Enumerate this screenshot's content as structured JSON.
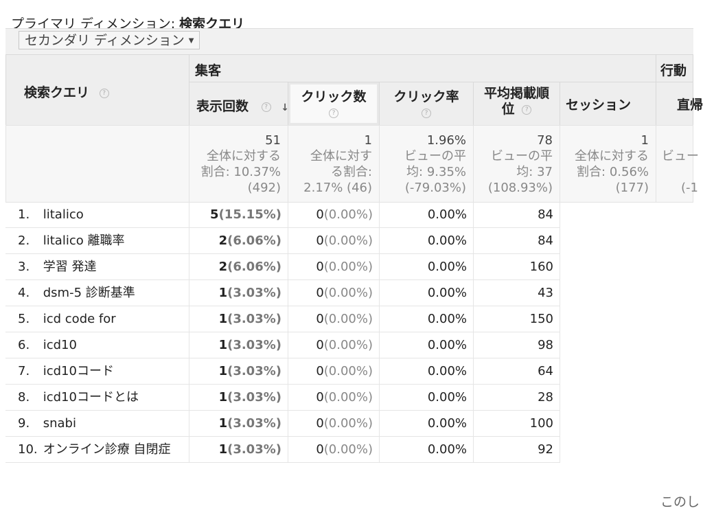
{
  "primary_dimension": {
    "label": "プライマリ ディメンション:",
    "value": "検索クエリ"
  },
  "secondary_dimension_button": "セカンダリ ディメンション",
  "headers": {
    "query": "検索クエリ",
    "group_acquisition": "集客",
    "group_behavior": "行動",
    "impressions": "表示回数",
    "clicks": "クリック数",
    "ctr": "クリック率",
    "avg_position": "平均掲載順位",
    "sessions": "セッション",
    "bounce_partial": "直帰"
  },
  "totals": {
    "impressions": {
      "value": "51",
      "line1": "全体に対する",
      "line2": "割合: 10.37%",
      "line3": "(492)"
    },
    "clicks": {
      "value": "1",
      "line1": "全体に対す",
      "line2": "る割合:",
      "line3": "2.17% (46)"
    },
    "ctr": {
      "value": "1.96%",
      "line1": "ビューの平",
      "line2": "均: 9.35%",
      "line3": "(-79.03%)"
    },
    "avg_position": {
      "value": "78",
      "line1": "ビューの平",
      "line2": "均: 37",
      "line3": "(108.93%)"
    },
    "sessions": {
      "value": "1",
      "line1": "全体に対する",
      "line2": "割合: 0.56%",
      "line3": "(177)"
    },
    "bounce": {
      "line1": "ビュー",
      "line3": "(-1"
    }
  },
  "rows": [
    {
      "index": "1.",
      "query": "litalico",
      "impressions": "5",
      "impressions_pct": "(15.15%)",
      "clicks": "0",
      "clicks_pct": "(0.00%)",
      "ctr": "0.00%",
      "position": "84"
    },
    {
      "index": "2.",
      "query": "litalico 離職率",
      "impressions": "2",
      "impressions_pct": "(6.06%)",
      "clicks": "0",
      "clicks_pct": "(0.00%)",
      "ctr": "0.00%",
      "position": "84"
    },
    {
      "index": "3.",
      "query": "学習 発達",
      "impressions": "2",
      "impressions_pct": "(6.06%)",
      "clicks": "0",
      "clicks_pct": "(0.00%)",
      "ctr": "0.00%",
      "position": "160"
    },
    {
      "index": "4.",
      "query": "dsm-5 診断基準",
      "impressions": "1",
      "impressions_pct": "(3.03%)",
      "clicks": "0",
      "clicks_pct": "(0.00%)",
      "ctr": "0.00%",
      "position": "43"
    },
    {
      "index": "5.",
      "query": "icd code for",
      "impressions": "1",
      "impressions_pct": "(3.03%)",
      "clicks": "0",
      "clicks_pct": "(0.00%)",
      "ctr": "0.00%",
      "position": "150"
    },
    {
      "index": "6.",
      "query": "icd10",
      "impressions": "1",
      "impressions_pct": "(3.03%)",
      "clicks": "0",
      "clicks_pct": "(0.00%)",
      "ctr": "0.00%",
      "position": "98"
    },
    {
      "index": "7.",
      "query": "icd10コード",
      "impressions": "1",
      "impressions_pct": "(3.03%)",
      "clicks": "0",
      "clicks_pct": "(0.00%)",
      "ctr": "0.00%",
      "position": "64"
    },
    {
      "index": "8.",
      "query": "icd10コードとは",
      "impressions": "1",
      "impressions_pct": "(3.03%)",
      "clicks": "0",
      "clicks_pct": "(0.00%)",
      "ctr": "0.00%",
      "position": "28"
    },
    {
      "index": "9.",
      "query": "snabi",
      "impressions": "1",
      "impressions_pct": "(3.03%)",
      "clicks": "0",
      "clicks_pct": "(0.00%)",
      "ctr": "0.00%",
      "position": "100"
    },
    {
      "index": "10.",
      "query": "オンライン診療 自閉症",
      "impressions": "1",
      "impressions_pct": "(3.03%)",
      "clicks": "0",
      "clicks_pct": "(0.00%)",
      "ctr": "0.00%",
      "position": "92"
    }
  ],
  "footer_partial": "このし",
  "icons": {
    "help": "question-circle-icon",
    "sort": "sort-down-arrow-icon",
    "dropdown": "caret-down-icon"
  }
}
